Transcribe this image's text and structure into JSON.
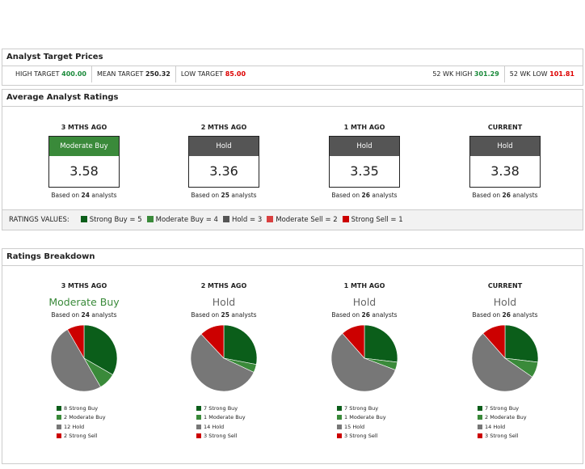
{
  "target": {
    "title": "Analyst Target Prices",
    "items": [
      {
        "label": "HIGH TARGET",
        "value": "400.00",
        "color": "g"
      },
      {
        "label": "MEAN TARGET",
        "value": "250.32",
        "color": "b"
      },
      {
        "label": "LOW TARGET",
        "value": "85.00",
        "color": "r"
      }
    ],
    "right": [
      {
        "label": "52 WK HIGH",
        "value": "301.29",
        "color": "g"
      },
      {
        "label": "52 WK LOW",
        "value": "101.81",
        "color": "r"
      }
    ]
  },
  "avg": {
    "title": "Average Analyst Ratings",
    "periods": [
      {
        "label": "3 MTHS AGO",
        "rating": "Moderate Buy",
        "color": "#3a8a3a",
        "score": "3.58",
        "based_pre": "Based on",
        "count": "24",
        "based_post": "analysts"
      },
      {
        "label": "2 MTHS AGO",
        "rating": "Hold",
        "color": "#555555",
        "score": "3.36",
        "based_pre": "Based on",
        "count": "25",
        "based_post": "analysts"
      },
      {
        "label": "1 MTH AGO",
        "rating": "Hold",
        "color": "#555555",
        "score": "3.35",
        "based_pre": "Based on",
        "count": "26",
        "based_post": "analysts"
      },
      {
        "label": "CURRENT",
        "rating": "Hold",
        "color": "#555555",
        "score": "3.38",
        "based_pre": "Based on",
        "count": "26",
        "based_post": "analysts"
      }
    ],
    "legend_label": "RATINGS VALUES:",
    "legend": [
      {
        "label": "Strong Buy = 5",
        "color": "#0b5e1a"
      },
      {
        "label": "Moderate Buy = 4",
        "color": "#3a8a3a"
      },
      {
        "label": "Hold = 3",
        "color": "#555555"
      },
      {
        "label": "Moderate Sell = 2",
        "color": "#d94040"
      },
      {
        "label": "Strong Sell = 1",
        "color": "#cc0000"
      }
    ]
  },
  "breakdown": {
    "title": "Ratings Breakdown",
    "colors": [
      "#0b5e1a",
      "#3a8a3a",
      "#777777",
      "#cc0000"
    ],
    "periods": [
      {
        "label": "3 MTHS AGO",
        "rating": "Moderate Buy",
        "rating_color": "#3a8a3a",
        "count": "24",
        "slices": [
          {
            "n": 8,
            "label": "Strong Buy"
          },
          {
            "n": 2,
            "label": "Moderate Buy"
          },
          {
            "n": 12,
            "label": "Hold"
          },
          {
            "n": 2,
            "label": "Strong Sell"
          }
        ]
      },
      {
        "label": "2 MTHS AGO",
        "rating": "Hold",
        "rating_color": "#666666",
        "count": "25",
        "slices": [
          {
            "n": 7,
            "label": "Strong Buy"
          },
          {
            "n": 1,
            "label": "Moderate Buy"
          },
          {
            "n": 14,
            "label": "Hold"
          },
          {
            "n": 3,
            "label": "Strong Sell"
          }
        ]
      },
      {
        "label": "1 MTH AGO",
        "rating": "Hold",
        "rating_color": "#666666",
        "count": "26",
        "slices": [
          {
            "n": 7,
            "label": "Strong Buy"
          },
          {
            "n": 1,
            "label": "Moderate Buy"
          },
          {
            "n": 15,
            "label": "Hold"
          },
          {
            "n": 3,
            "label": "Strong Sell"
          }
        ]
      },
      {
        "label": "CURRENT",
        "rating": "Hold",
        "rating_color": "#666666",
        "count": "26",
        "slices": [
          {
            "n": 7,
            "label": "Strong Buy"
          },
          {
            "n": 2,
            "label": "Moderate Buy"
          },
          {
            "n": 14,
            "label": "Hold"
          },
          {
            "n": 3,
            "label": "Strong Sell"
          }
        ]
      }
    ]
  }
}
